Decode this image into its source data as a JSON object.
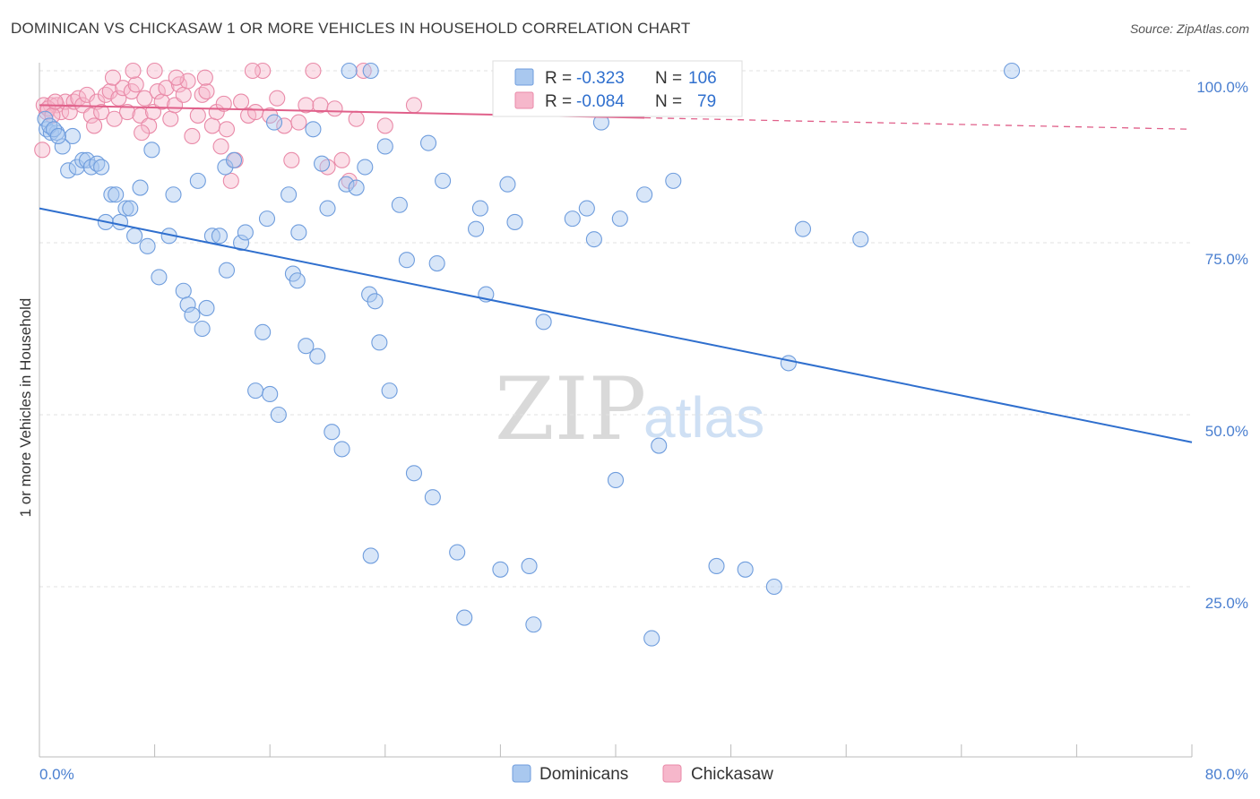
{
  "header": {
    "title": "DOMINICAN VS CHICKASAW 1 OR MORE VEHICLES IN HOUSEHOLD CORRELATION CHART",
    "source": "Source: ZipAtlas.com"
  },
  "watermark": {
    "zip": "ZIP",
    "atlas": "atlas"
  },
  "legend_box": {
    "rows": [
      {
        "r_label": "R =",
        "r_value": "-0.323",
        "n_label": "N =",
        "n_value": "106",
        "color": "#a9c8ef"
      },
      {
        "r_label": "R =",
        "r_value": "-0.084",
        "n_label": "N =",
        "n_value": "79",
        "color": "#f6b7cb"
      }
    ]
  },
  "bottom_legend": [
    {
      "label": "Dominicans",
      "color": "#a9c8ef"
    },
    {
      "label": "Chickasaw",
      "color": "#f6b7cb"
    }
  ],
  "colors": {
    "blue_fill": "#a9c8ef",
    "blue_stroke": "#6f9ddd",
    "blue_line": "#2f6fce",
    "pink_fill": "#f6b7cb",
    "pink_stroke": "#e98aa8",
    "pink_line": "#e0608a",
    "value_text": "#2f6fce",
    "grid": "#e2e2e2"
  },
  "chart_data": {
    "type": "scatter",
    "title": "DOMINICAN VS CHICKASAW 1 OR MORE VEHICLES IN HOUSEHOLD CORRELATION CHART",
    "xlabel": "",
    "ylabel": "1 or more Vehicles in Household",
    "xlim": [
      0,
      80
    ],
    "ylim": [
      0,
      105
    ],
    "x_tick_labels": [
      "0.0%",
      "80.0%"
    ],
    "y_ticks": [
      25,
      50,
      75,
      100
    ],
    "y_tick_labels": [
      "25.0%",
      "50.0%",
      "75.0%",
      "100.0%"
    ],
    "grid": true,
    "legend_position": "top-center",
    "series": [
      {
        "name": "Dominicans",
        "r": -0.323,
        "n": 106,
        "trend": {
          "x": [
            0,
            80
          ],
          "y": [
            80,
            46
          ]
        },
        "points": [
          [
            0.5,
            91.5
          ],
          [
            0.8,
            91
          ],
          [
            1.2,
            91
          ],
          [
            1.6,
            89
          ],
          [
            2,
            85.5
          ],
          [
            2.3,
            90.5
          ],
          [
            2.6,
            86
          ],
          [
            3,
            87
          ],
          [
            3.3,
            87
          ],
          [
            3.6,
            86
          ],
          [
            4,
            86.5
          ],
          [
            4.3,
            86
          ],
          [
            4.6,
            78
          ],
          [
            5,
            82
          ],
          [
            5.3,
            82
          ],
          [
            5.6,
            78
          ],
          [
            6,
            80
          ],
          [
            6.3,
            80
          ],
          [
            6.6,
            76
          ],
          [
            7,
            83
          ],
          [
            7.5,
            74.5
          ],
          [
            7.8,
            88.5
          ],
          [
            8.3,
            70
          ],
          [
            9,
            76
          ],
          [
            9.3,
            82
          ],
          [
            10,
            68
          ],
          [
            10.3,
            66
          ],
          [
            10.6,
            64.5
          ],
          [
            11,
            84
          ],
          [
            11.3,
            62.5
          ],
          [
            11.6,
            65.5
          ],
          [
            12,
            76
          ],
          [
            12.5,
            76
          ],
          [
            12.9,
            86
          ],
          [
            13,
            71
          ],
          [
            13.5,
            87
          ],
          [
            14,
            75
          ],
          [
            14.3,
            76.5
          ],
          [
            15,
            53.5
          ],
          [
            15.5,
            62
          ],
          [
            15.8,
            78.5
          ],
          [
            16,
            53
          ],
          [
            16.3,
            92.5
          ],
          [
            16.6,
            50
          ],
          [
            17.3,
            82
          ],
          [
            17.6,
            70.5
          ],
          [
            17.9,
            69.5
          ],
          [
            18,
            76.5
          ],
          [
            18.5,
            60
          ],
          [
            19,
            91.5
          ],
          [
            19.3,
            58.5
          ],
          [
            19.6,
            86.5
          ],
          [
            20,
            80
          ],
          [
            20.3,
            47.5
          ],
          [
            21,
            45
          ],
          [
            21.3,
            83.5
          ],
          [
            21.5,
            100
          ],
          [
            22,
            83
          ],
          [
            22.6,
            86
          ],
          [
            22.9,
            67.5
          ],
          [
            23,
            29.5
          ],
          [
            23.3,
            66.5
          ],
          [
            23.6,
            60.5
          ],
          [
            24,
            89
          ],
          [
            24.3,
            53.5
          ],
          [
            25,
            80.5
          ],
          [
            25.5,
            72.5
          ],
          [
            26,
            41.5
          ],
          [
            27,
            89.5
          ],
          [
            27.3,
            38
          ],
          [
            27.6,
            72
          ],
          [
            28,
            84
          ],
          [
            29,
            30
          ],
          [
            29.5,
            20.5
          ],
          [
            30.3,
            77
          ],
          [
            30.6,
            80
          ],
          [
            31,
            67.5
          ],
          [
            32,
            27.5
          ],
          [
            32.5,
            83.5
          ],
          [
            33,
            78
          ],
          [
            34,
            28
          ],
          [
            34.3,
            19.5
          ],
          [
            35,
            63.5
          ],
          [
            37,
            78.5
          ],
          [
            38,
            80
          ],
          [
            38.5,
            75.5
          ],
          [
            39,
            92.5
          ],
          [
            40,
            40.5
          ],
          [
            40.3,
            78.5
          ],
          [
            42,
            82
          ],
          [
            42.5,
            17.5
          ],
          [
            43,
            45.5
          ],
          [
            44,
            84
          ],
          [
            47,
            28
          ],
          [
            49,
            27.5
          ],
          [
            51,
            25
          ],
          [
            52,
            57.5
          ],
          [
            53,
            77
          ],
          [
            57,
            75.5
          ],
          [
            67.5,
            100
          ],
          [
            33,
            100
          ],
          [
            23,
            100
          ],
          [
            0.4,
            93
          ],
          [
            0.7,
            92
          ],
          [
            1.0,
            91.5
          ],
          [
            1.3,
            90.5
          ]
        ]
      },
      {
        "name": "Chickasaw",
        "r": -0.084,
        "n": 79,
        "trend": {
          "x": [
            0,
            80
          ],
          "y": [
            95,
            91.5
          ]
        },
        "trend_solid_end_x": 42,
        "points": [
          [
            0.2,
            88.5
          ],
          [
            0.5,
            94
          ],
          [
            0.8,
            95
          ],
          [
            1.2,
            95
          ],
          [
            1.5,
            94
          ],
          [
            1.8,
            95.5
          ],
          [
            2.1,
            94
          ],
          [
            2.4,
            95.5
          ],
          [
            2.7,
            96
          ],
          [
            3,
            95
          ],
          [
            3.3,
            96.5
          ],
          [
            3.6,
            93.5
          ],
          [
            4,
            95.5
          ],
          [
            4.3,
            94
          ],
          [
            4.6,
            96.5
          ],
          [
            4.9,
            97
          ],
          [
            5.2,
            93
          ],
          [
            5.5,
            96
          ],
          [
            5.8,
            97.5
          ],
          [
            6.1,
            94
          ],
          [
            6.4,
            97
          ],
          [
            6.7,
            98
          ],
          [
            7,
            93.5
          ],
          [
            7.3,
            96
          ],
          [
            7.6,
            92
          ],
          [
            7.9,
            94
          ],
          [
            8.2,
            97
          ],
          [
            8.5,
            95.5
          ],
          [
            8.8,
            97.5
          ],
          [
            9.1,
            93
          ],
          [
            9.4,
            95
          ],
          [
            9.7,
            98
          ],
          [
            10,
            96.5
          ],
          [
            10.3,
            98.5
          ],
          [
            10.6,
            90.5
          ],
          [
            11,
            93.5
          ],
          [
            11.3,
            96.5
          ],
          [
            11.6,
            97
          ],
          [
            12,
            92
          ],
          [
            12.3,
            94
          ],
          [
            12.6,
            89
          ],
          [
            13,
            91.5
          ],
          [
            13.3,
            84
          ],
          [
            13.6,
            87
          ],
          [
            14,
            95.5
          ],
          [
            14.5,
            93.5
          ],
          [
            15,
            94
          ],
          [
            15.5,
            100
          ],
          [
            16,
            93.5
          ],
          [
            16.5,
            96
          ],
          [
            17,
            92
          ],
          [
            17.5,
            87
          ],
          [
            18,
            92.5
          ],
          [
            18.5,
            95
          ],
          [
            19,
            100
          ],
          [
            19.5,
            95
          ],
          [
            20,
            86
          ],
          [
            20.5,
            94.5
          ],
          [
            21,
            87
          ],
          [
            21.5,
            84
          ],
          [
            22,
            93
          ],
          [
            22.5,
            100
          ],
          [
            24,
            92
          ],
          [
            26,
            95
          ],
          [
            37,
            100
          ],
          [
            41,
            98.5
          ],
          [
            0.3,
            95
          ],
          [
            0.6,
            94.5
          ],
          [
            0.9,
            93.5
          ],
          [
            1.1,
            95.5
          ],
          [
            6.5,
            100
          ],
          [
            8,
            100
          ],
          [
            9.5,
            99
          ],
          [
            11.5,
            99
          ],
          [
            14.8,
            100
          ],
          [
            3.8,
            92
          ],
          [
            5.1,
            99
          ],
          [
            7.1,
            91
          ],
          [
            12.8,
            95.2
          ]
        ]
      }
    ]
  }
}
